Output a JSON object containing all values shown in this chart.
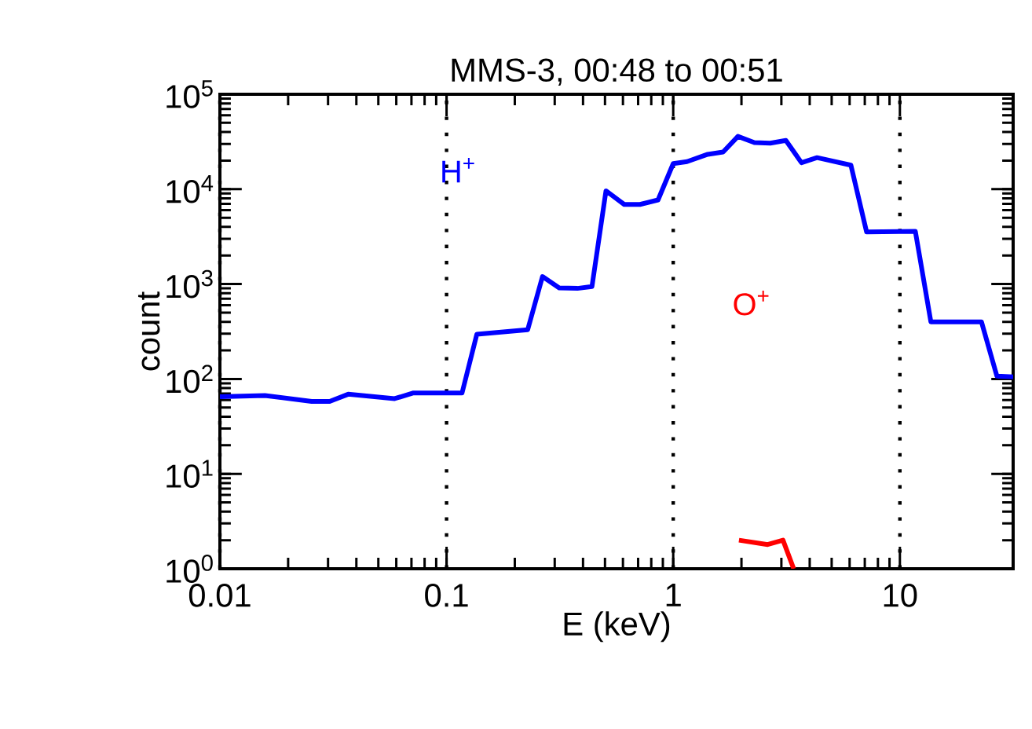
{
  "chart_data": {
    "type": "line",
    "title": "MMS-3, 00:48 to 00:51",
    "xlabel": "E (keV)",
    "ylabel": "count",
    "log": "xy",
    "grid": "x",
    "xlim": [
      0.01,
      31.6
    ],
    "ylim": [
      1,
      100000
    ],
    "xticks": [
      0.01,
      0.1,
      1,
      10
    ],
    "yticks": [
      {
        "value": 1,
        "label": "10$^{0}$"
      },
      {
        "value": 10,
        "label": "10$^{1}$"
      },
      {
        "value": 100,
        "label": "10$^{2}$"
      },
      {
        "value": 1000,
        "label": "10$^{3}$"
      },
      {
        "value": 10000,
        "label": "10$^{4}$"
      },
      {
        "value": 100000,
        "label": "10$^{5}$"
      }
    ],
    "series": [
      {
        "name": "H$^{+}$",
        "color": "#0000ff",
        "x": [
          0.01,
          0.0158,
          0.0254,
          0.0305,
          0.0368,
          0.059,
          0.071,
          0.117,
          0.136,
          0.228,
          0.265,
          0.314,
          0.378,
          0.438,
          0.505,
          0.608,
          0.713,
          0.857,
          1.0,
          1.15,
          1.42,
          1.66,
          1.93,
          2.28,
          2.68,
          3.14,
          3.68,
          4.31,
          6.08,
          7.13,
          11.7,
          13.7,
          22.9,
          26.8,
          31.6
        ],
        "values": [
          65,
          67,
          58,
          58,
          69,
          62,
          71,
          71,
          296,
          330,
          1200,
          910,
          900,
          940,
          9600,
          6900,
          6900,
          7700,
          18600,
          19500,
          23300,
          24600,
          36000,
          31000,
          30500,
          32600,
          19000,
          21500,
          17900,
          3540,
          3600,
          400,
          400,
          107,
          105
        ]
      },
      {
        "name": "O$^{+}$",
        "color": "#ff0000",
        "x": [
          1.95,
          2.61,
          3.05,
          3.4
        ],
        "values": [
          2.0,
          1.8,
          2.0,
          1.0
        ]
      }
    ]
  }
}
